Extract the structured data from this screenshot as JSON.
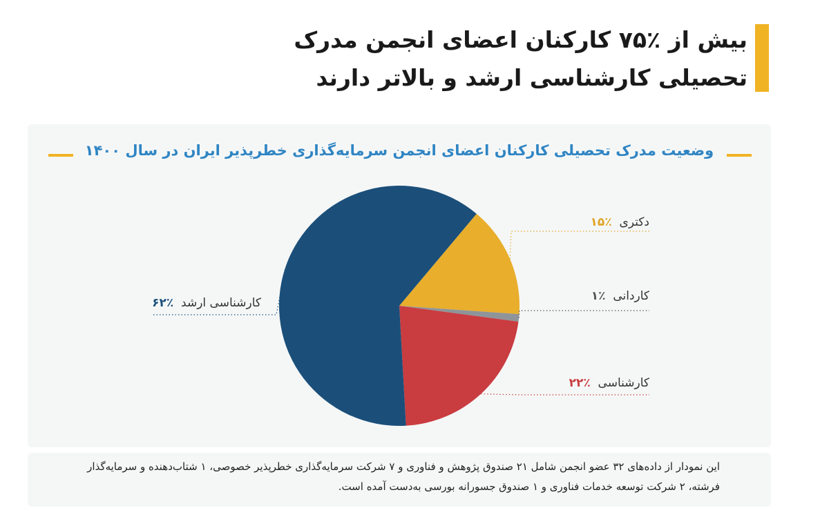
{
  "headline": "بیش از ٪۷۵ کارکنان اعضای انجمن مدرک تحصیلی کارشناسی ارشد و بالاتر دارند",
  "footnote": "این نمودار از داده‌های ۳۲ عضو انجمن شامل ۲۱ صندوق پژوهش و فناوری و ۷ شرکت سرمایه‌گذاری خطرپذیر خصوصی، ۱ شتاب‌دهنده و سرمایه‌گذار فرشته، ۲ شرکت توسعه خدمات فناوری و ۱ صندوق جسورانه بورسی به‌دست آمده است.",
  "colors": {
    "accent": "#F0B323",
    "title_blue": "#2F85C3",
    "navy": "#1B4F7A",
    "gold": "#E8AE2C",
    "gray": "#8E9499",
    "red": "#C93C40"
  },
  "chart_data": {
    "type": "pie",
    "title": "وضعیت مدرک تحصیلی کارکنان اعضای انجمن سرمایه‌گذاری خطرپذیر ایران در سال ۱۴۰۰",
    "slices": [
      {
        "name": "دکتری",
        "value": 15,
        "label": "٪۱۵",
        "color": "#E8AE2C",
        "label_color": "#E0A526"
      },
      {
        "name": "کاردانی",
        "value": 1,
        "label": "٪۱",
        "color": "#8E9499",
        "label_color": "#555555"
      },
      {
        "name": "کارشناسی",
        "value": 22,
        "label": "٪۲۲",
        "color": "#C93C40",
        "label_color": "#C93C40"
      },
      {
        "name": "کارشناسی ارشد",
        "value": 62,
        "label": "٪۶۲",
        "color": "#1B4F7A",
        "label_color": "#1B4F7A"
      }
    ]
  }
}
